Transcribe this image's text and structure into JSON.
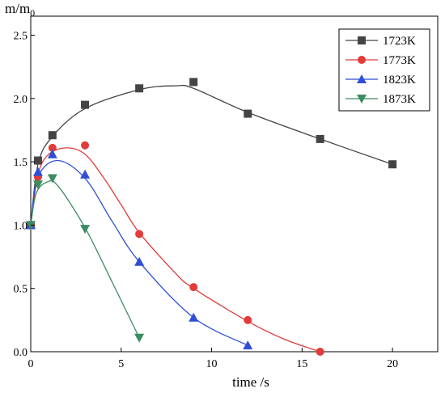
{
  "chart_data": {
    "type": "scatter",
    "xlabel": "time /s",
    "ylabel": "m/m",
    "ylabel_sub": "0",
    "xlim": [
      0,
      22.5
    ],
    "ylim": [
      0,
      2.65
    ],
    "xticks": [
      0,
      5,
      10,
      15,
      20
    ],
    "yticks": [
      0.0,
      0.5,
      1.0,
      1.5,
      2.0,
      2.5
    ],
    "xtick_labels": [
      "0",
      "5",
      "10",
      "15",
      "20"
    ],
    "ytick_labels": [
      "0.0",
      "0.5",
      "1.0",
      "1.5",
      "2.0",
      "2.5"
    ],
    "grid": false,
    "legend_position": "top-right",
    "series": [
      {
        "name": "1723K",
        "color": "#444444",
        "marker": "square",
        "points": [
          [
            0,
            1.0
          ],
          [
            0.4,
            1.51
          ],
          [
            1.2,
            1.71
          ],
          [
            3,
            1.95
          ],
          [
            6,
            2.08
          ],
          [
            9,
            2.13
          ],
          [
            12,
            1.88
          ],
          [
            16,
            1.68
          ],
          [
            20,
            1.48
          ]
        ],
        "curve": [
          [
            0,
            1.0
          ],
          [
            0.4,
            1.48
          ],
          [
            1.2,
            1.7
          ],
          [
            3,
            1.92
          ],
          [
            6,
            2.07
          ],
          [
            8,
            2.1
          ],
          [
            9,
            2.08
          ],
          [
            12,
            1.89
          ],
          [
            16,
            1.68
          ],
          [
            20,
            1.48
          ]
        ]
      },
      {
        "name": "1773K",
        "color": "#e23b3b",
        "marker": "circle",
        "points": [
          [
            0,
            1.0
          ],
          [
            0.4,
            1.38
          ],
          [
            1.2,
            1.61
          ],
          [
            3,
            1.63
          ],
          [
            6,
            0.93
          ],
          [
            9,
            0.51
          ],
          [
            12,
            0.25
          ],
          [
            16,
            0.0
          ]
        ],
        "curve": [
          [
            0,
            1.0
          ],
          [
            0.4,
            1.4
          ],
          [
            1,
            1.56
          ],
          [
            2,
            1.61
          ],
          [
            3,
            1.56
          ],
          [
            4,
            1.38
          ],
          [
            5,
            1.16
          ],
          [
            6,
            0.94
          ],
          [
            8,
            0.62
          ],
          [
            9,
            0.5
          ],
          [
            12,
            0.24
          ],
          [
            14,
            0.1
          ],
          [
            16,
            0.0
          ]
        ]
      },
      {
        "name": "1823K",
        "color": "#2f4fd6",
        "marker": "triangle-up",
        "points": [
          [
            0,
            1.0
          ],
          [
            0.4,
            1.42
          ],
          [
            1.2,
            1.56
          ],
          [
            3,
            1.4
          ],
          [
            6,
            0.71
          ],
          [
            9,
            0.27
          ],
          [
            12,
            0.05
          ]
        ],
        "curve": [
          [
            0,
            1.0
          ],
          [
            0.4,
            1.38
          ],
          [
            1.5,
            1.51
          ],
          [
            3,
            1.37
          ],
          [
            4.5,
            1.03
          ],
          [
            6,
            0.71
          ],
          [
            9,
            0.27
          ],
          [
            12,
            0.05
          ]
        ]
      },
      {
        "name": "1873K",
        "color": "#3c8c62",
        "marker": "triangle-down",
        "points": [
          [
            0,
            1.0
          ],
          [
            0.4,
            1.32
          ],
          [
            1.2,
            1.37
          ],
          [
            3,
            0.97
          ],
          [
            6,
            0.11
          ]
        ],
        "curve": [
          [
            0,
            1.0
          ],
          [
            0.3,
            1.25
          ],
          [
            0.9,
            1.34
          ],
          [
            1.5,
            1.31
          ],
          [
            3,
            0.98
          ],
          [
            4.5,
            0.55
          ],
          [
            6,
            0.11
          ]
        ]
      }
    ]
  }
}
